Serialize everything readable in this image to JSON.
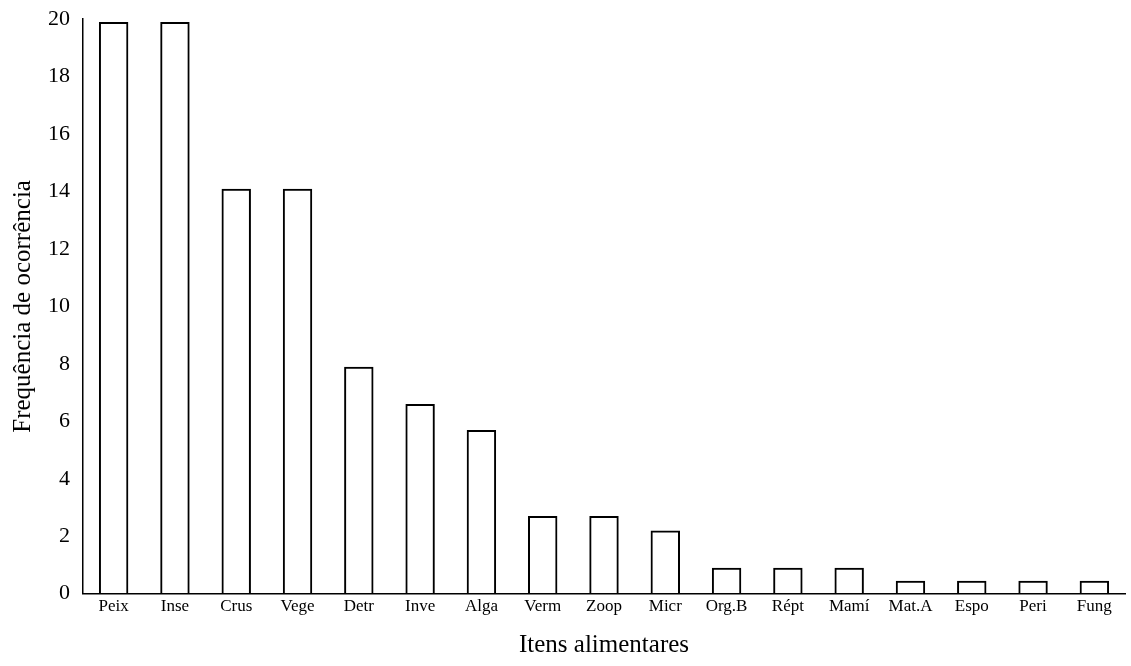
{
  "chart_data": {
    "type": "bar",
    "xlabel": "Itens alimentares",
    "ylabel": "Frequência de ocorrência",
    "categories": [
      "Peix",
      "Inse",
      "Crus",
      "Vege",
      "Detr",
      "Inve",
      "Alga",
      "Verm",
      "Zoop",
      "Micr",
      "Org.B",
      "Répt",
      "Mamí",
      "Mat.A",
      "Espo",
      "Peri",
      "Fung"
    ],
    "values": [
      19.9,
      19.9,
      14.1,
      14.1,
      7.9,
      6.6,
      5.7,
      2.7,
      2.7,
      2.2,
      0.9,
      0.9,
      0.9,
      0.45,
      0.45,
      0.45,
      0.45
    ],
    "color": "#000000",
    "ylim": [
      0,
      20
    ],
    "yticks": [
      0,
      2,
      4,
      6,
      8,
      10,
      12,
      14,
      16,
      18,
      20
    ],
    "grid": false,
    "legend": false
  }
}
